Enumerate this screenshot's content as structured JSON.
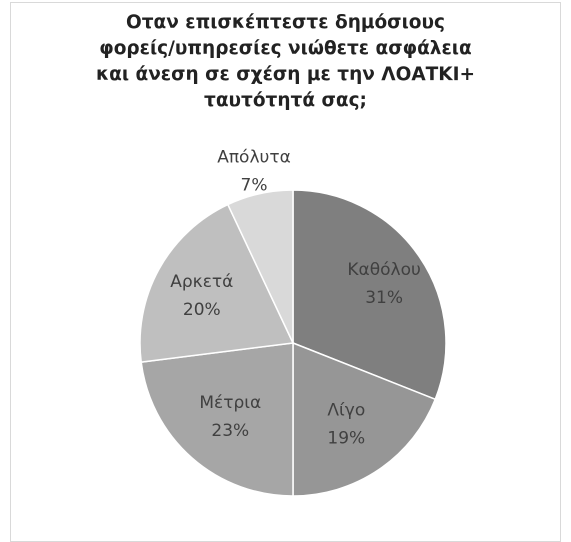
{
  "chart_data": {
    "type": "pie",
    "title_lines": [
      "Οταν επισκέπτεστε δημόσιους",
      "φορείς/υπηρεσίες νιώθετε ασφάλεια",
      "και άνεση σε σχέση με την ΛΟΑΤΚΙ+",
      "ταυτότητά σας;"
    ],
    "slices": [
      {
        "label": "Καθόλου",
        "value": 31,
        "percent_label": "31%",
        "color": "#7f7f7f"
      },
      {
        "label": "Λίγο",
        "value": 19,
        "percent_label": "19%",
        "color": "#969696"
      },
      {
        "label": "Μέτρια",
        "value": 23,
        "percent_label": "23%",
        "color": "#a6a6a6"
      },
      {
        "label": "Αρκετά",
        "value": 20,
        "percent_label": "20%",
        "color": "#bfbfbf"
      },
      {
        "label": "Απόλυτα",
        "value": 7,
        "percent_label": "7%",
        "color": "#d9d9d9"
      }
    ],
    "legend": "none"
  }
}
